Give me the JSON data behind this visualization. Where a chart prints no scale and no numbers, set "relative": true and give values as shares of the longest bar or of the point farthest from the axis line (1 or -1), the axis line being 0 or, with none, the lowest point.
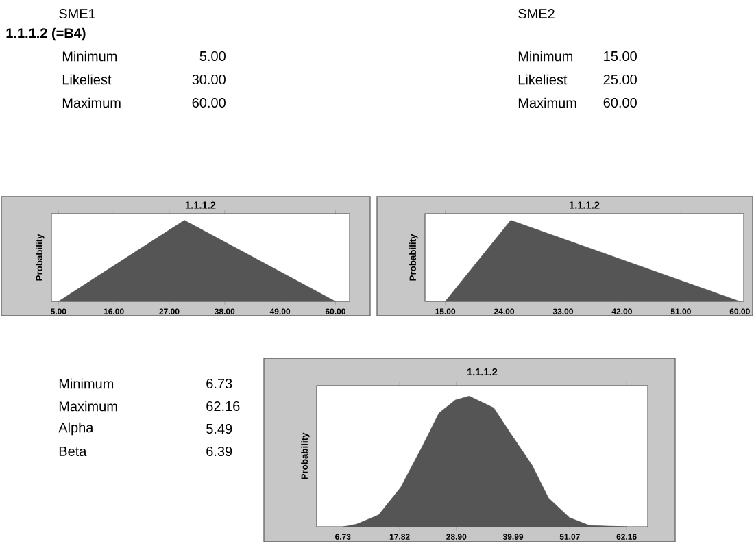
{
  "chart_data": [
    {
      "type": "other",
      "title": "SME1",
      "subtitle": "1.1.1.2 (=B4)",
      "annotations": [
        "Minimum",
        "5.00",
        "Likeliest",
        "30.00",
        "Maximum",
        "60.00"
      ]
    },
    {
      "type": "other",
      "title": "SME2",
      "annotations": [
        "Minimum",
        "15.00",
        "Likeliest",
        "25.00",
        "Maximum",
        "60.00"
      ]
    },
    {
      "type": "area",
      "title": "1.1.1.2",
      "ylabel": "Probability",
      "relative": true,
      "color": "#555555",
      "tick_labels": "x",
      "x": [
        5,
        30,
        60
      ],
      "values": [
        0,
        1,
        0
      ],
      "xlim": [
        3.6,
        62.8
      ],
      "xticks": [
        {
          "value": 5,
          "label": "5.00"
        },
        {
          "value": 16,
          "label": "16.00"
        },
        {
          "value": 27,
          "label": "27.00"
        },
        {
          "value": 38,
          "label": "38.00"
        },
        {
          "value": 49,
          "label": "49.00"
        },
        {
          "value": 60,
          "label": "60.00"
        }
      ]
    },
    {
      "type": "area",
      "title": "1.1.1.2",
      "ylabel": "Probability",
      "relative": true,
      "color": "#555555",
      "tick_labels": "x",
      "x": [
        15,
        25,
        60
      ],
      "values": [
        0,
        1,
        0
      ],
      "xlim": [
        11.9,
        60.6
      ],
      "xticks": [
        {
          "value": 15,
          "label": "15.00"
        },
        {
          "value": 24,
          "label": "24.00"
        },
        {
          "value": 33,
          "label": "33.00"
        },
        {
          "value": 42,
          "label": "42.00"
        },
        {
          "value": 51,
          "label": "51.00"
        },
        {
          "value": 60,
          "label": "60.00"
        }
      ]
    },
    {
      "type": "other",
      "annotations": [
        "Minimum",
        "6.73",
        "Maximum",
        "62.16",
        "Alpha",
        "5.49",
        "Beta",
        "6.39"
      ]
    },
    {
      "type": "area",
      "title": "1.1.1.2",
      "ylabel": "Probability",
      "relative": true,
      "color": "#555555",
      "tick_labels": "x",
      "x": [
        6.73,
        9.4,
        13.7,
        18.0,
        22.3,
        25.5,
        28.7,
        31.4,
        36.2,
        39.4,
        43.7,
        46.9,
        51.0,
        54.9,
        62.16
      ],
      "values": [
        0,
        0.02,
        0.09,
        0.3,
        0.62,
        0.87,
        0.97,
        1.0,
        0.91,
        0.72,
        0.47,
        0.22,
        0.07,
        0.01,
        0
      ],
      "xlim": [
        1.6,
        66.3
      ],
      "xticks": [
        {
          "value": 6.73,
          "label": "6.73"
        },
        {
          "value": 17.82,
          "label": "17.82"
        },
        {
          "value": 28.9,
          "label": "28.90"
        },
        {
          "value": 39.99,
          "label": "39.99"
        },
        {
          "value": 51.07,
          "label": "51.07"
        },
        {
          "value": 62.16,
          "label": "62.16"
        }
      ]
    }
  ]
}
